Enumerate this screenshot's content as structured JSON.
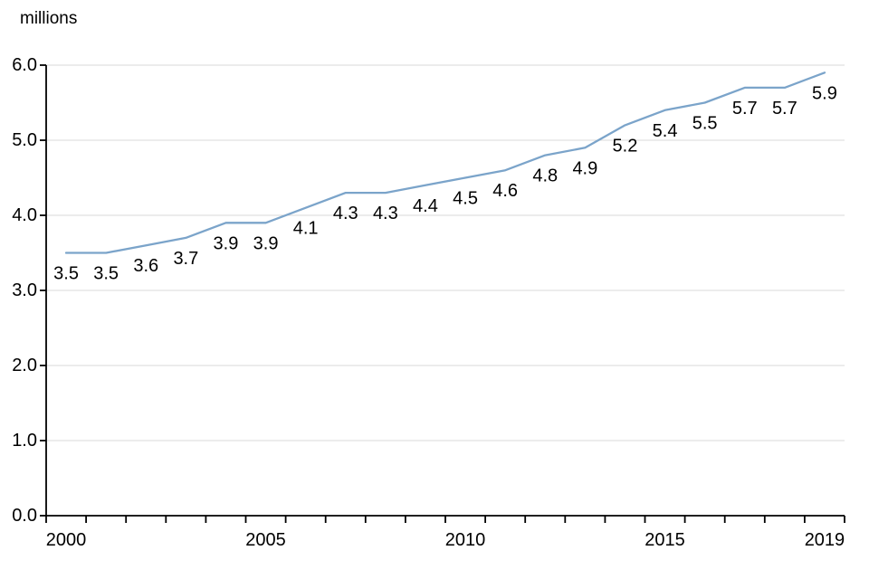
{
  "chart_data": {
    "type": "line",
    "title": "millions",
    "ylabel": "millions",
    "xlabel": "",
    "x": [
      2000,
      2001,
      2002,
      2003,
      2004,
      2005,
      2006,
      2007,
      2008,
      2009,
      2010,
      2011,
      2012,
      2013,
      2014,
      2015,
      2016,
      2017,
      2018,
      2019
    ],
    "values": [
      3.5,
      3.5,
      3.6,
      3.7,
      3.9,
      3.9,
      4.1,
      4.3,
      4.3,
      4.4,
      4.5,
      4.6,
      4.8,
      4.9,
      5.2,
      5.4,
      5.5,
      5.7,
      5.7,
      5.9
    ],
    "point_labels": [
      "3.5",
      "3.5",
      "3.6",
      "3.7",
      "3.9",
      "3.9",
      "4.1",
      "4.3",
      "4.3",
      "4.4",
      "4.5",
      "4.6",
      "4.8",
      "4.9",
      "5.2",
      "5.4",
      "5.5",
      "5.7",
      "5.7",
      "5.9"
    ],
    "ylim": [
      0,
      6
    ],
    "ytick_step": 1.0,
    "ytick_labels": [
      "0.0",
      "1.0",
      "2.0",
      "3.0",
      "4.0",
      "5.0",
      "6.0"
    ],
    "xtick_labels": [
      {
        "label": "2000",
        "index": 0
      },
      {
        "label": "2005",
        "index": 5
      },
      {
        "label": "2010",
        "index": 10
      },
      {
        "label": "2015",
        "index": 15
      },
      {
        "label": "2019",
        "index": 19
      }
    ],
    "grid": "horizontal",
    "legend": "none",
    "colors": {
      "line": "#7BA4CA",
      "gridline": "#D9D9D9",
      "axis": "#000000",
      "text": "#000000",
      "background": "#FFFFFF"
    }
  }
}
